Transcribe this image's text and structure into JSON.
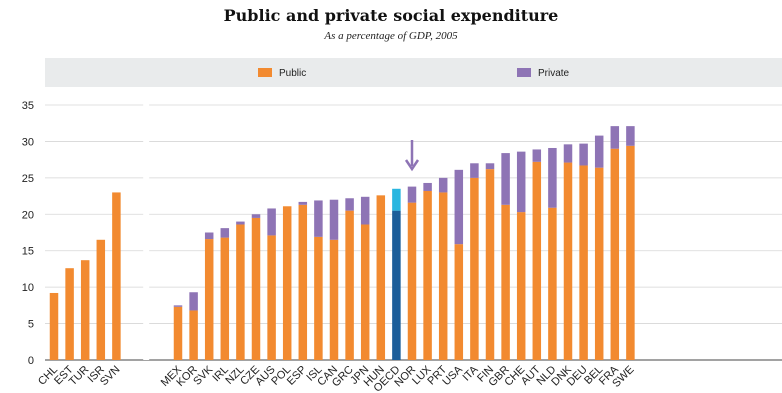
{
  "chart_data": {
    "type": "bar",
    "stacked": true,
    "title": "Public and private social expenditure",
    "subtitle": "As a percentage of GDP, 2005",
    "ylim": [
      0,
      35
    ],
    "yticks": [
      0,
      5,
      10,
      15,
      20,
      25,
      30,
      35
    ],
    "grid": true,
    "legend_position": "top",
    "groups": [
      [
        "CHL",
        "EST",
        "TUR",
        "ISR",
        "SVN"
      ],
      [
        "MEX",
        "KOR",
        "SVK",
        "IRL",
        "NZL",
        "CZE",
        "AUS",
        "POL",
        "ESP",
        "ISL",
        "CAN",
        "GRC",
        "JPN",
        "HUN",
        "OECD",
        "NOR",
        "LUX",
        "PRT",
        "USA",
        "ITA",
        "FIN",
        "GBR",
        "CHE",
        "AUT",
        "NLD",
        "DNK",
        "DEU",
        "BEL",
        "FRA",
        "SWE"
      ]
    ],
    "categories": [
      "CHL",
      "EST",
      "TUR",
      "ISR",
      "SVN",
      "MEX",
      "KOR",
      "SVK",
      "IRL",
      "NZL",
      "CZE",
      "AUS",
      "POL",
      "ESP",
      "ISL",
      "CAN",
      "GRC",
      "JPN",
      "HUN",
      "OECD",
      "NOR",
      "LUX",
      "PRT",
      "USA",
      "ITA",
      "FIN",
      "GBR",
      "CHE",
      "AUT",
      "NLD",
      "DNK",
      "DEU",
      "BEL",
      "FRA",
      "SWE"
    ],
    "highlight": "OECD",
    "arrow_marker": "NOR",
    "series": [
      {
        "name": "Public",
        "color": "#f28a30",
        "values": [
          9.2,
          12.6,
          13.7,
          16.5,
          23.0,
          7.3,
          6.8,
          16.6,
          16.8,
          18.6,
          19.5,
          17.1,
          21.1,
          21.3,
          16.9,
          16.5,
          20.5,
          18.6,
          22.6,
          20.5,
          21.6,
          23.2,
          23.0,
          15.9,
          25.0,
          26.2,
          21.3,
          20.3,
          27.2,
          20.9,
          27.1,
          26.7,
          26.4,
          29.0,
          29.4
        ]
      },
      {
        "name": "Private",
        "color": "#8e74b5",
        "values": [
          0,
          0,
          0,
          0,
          0,
          0.2,
          2.5,
          0.9,
          1.3,
          0.4,
          0.5,
          3.7,
          0,
          0.4,
          5.0,
          5.5,
          1.7,
          3.8,
          0,
          3.0,
          2.2,
          1.1,
          2.0,
          10.2,
          2.0,
          0.8,
          7.1,
          8.3,
          1.7,
          8.2,
          2.5,
          3.0,
          4.4,
          3.1,
          2.7
        ]
      }
    ],
    "highlight_colors": {
      "public": "#1c5e9a",
      "private": "#29b6e0"
    }
  },
  "legend": {
    "public_label": "Public",
    "private_label": "Private"
  },
  "colors": {
    "arrow": "#8e74b5",
    "grid": "#d6d6d6",
    "legend_bg": "#e9ebec"
  }
}
